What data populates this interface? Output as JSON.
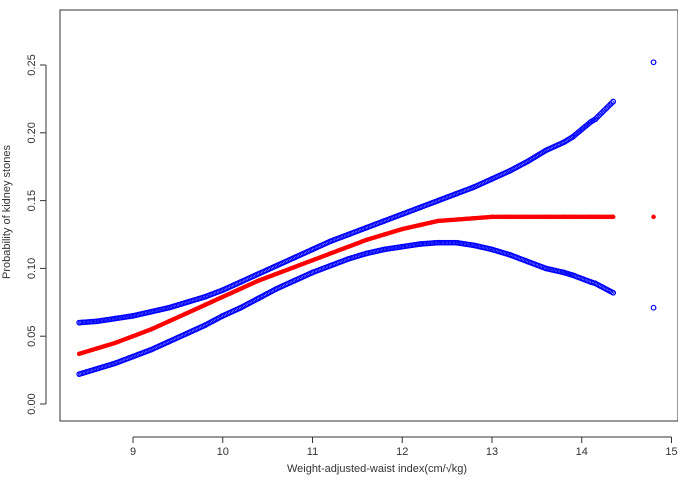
{
  "chart_data": {
    "type": "scatter",
    "title": "",
    "xlabel": "Weight-adjusted-waist index(cm/√kg)",
    "ylabel": "Probability of kidney stones",
    "xlim": [
      8.3,
      15.0
    ],
    "ylim": [
      0.0,
      0.27
    ],
    "xticks": [
      "9",
      "10",
      "11",
      "12",
      "13",
      "14",
      "15"
    ],
    "yticks": [
      "0.00",
      "0.05",
      "0.10",
      "0.15",
      "0.20",
      "0.25"
    ],
    "grid": false,
    "legend": "none",
    "colors": {
      "estimate": "#ff0000",
      "ci": "#0000ff"
    },
    "series": [
      {
        "role": "estimate",
        "marker": "filled-dot",
        "x": [
          8.4,
          8.6,
          8.8,
          9.0,
          9.2,
          9.4,
          9.6,
          9.8,
          10.0,
          10.2,
          10.4,
          10.6,
          10.8,
          11.0,
          11.2,
          11.4,
          11.6,
          11.8,
          12.0,
          12.2,
          12.4,
          12.6,
          12.8,
          13.0,
          13.2,
          13.4,
          13.6,
          13.8,
          13.9,
          14.1,
          14.15,
          14.35,
          14.8
        ],
        "y": [
          0.037,
          0.041,
          0.045,
          0.05,
          0.055,
          0.061,
          0.067,
          0.073,
          0.079,
          0.085,
          0.091,
          0.096,
          0.101,
          0.106,
          0.111,
          0.116,
          0.121,
          0.125,
          0.129,
          0.132,
          0.135,
          0.136,
          0.137,
          0.138,
          0.138,
          0.138,
          0.138,
          0.138,
          0.138,
          0.138,
          0.138,
          0.138,
          0.138
        ]
      },
      {
        "role": "ci-upper",
        "marker": "open-circle",
        "x": [
          8.4,
          8.6,
          8.8,
          9.0,
          9.2,
          9.4,
          9.6,
          9.8,
          10.0,
          10.2,
          10.4,
          10.6,
          10.8,
          11.0,
          11.2,
          11.4,
          11.6,
          11.8,
          12.0,
          12.2,
          12.4,
          12.6,
          12.8,
          13.0,
          13.2,
          13.4,
          13.6,
          13.8,
          13.9,
          14.1,
          14.15,
          14.35,
          14.8
        ],
        "y": [
          0.06,
          0.061,
          0.063,
          0.065,
          0.068,
          0.071,
          0.075,
          0.079,
          0.084,
          0.09,
          0.096,
          0.102,
          0.108,
          0.114,
          0.12,
          0.125,
          0.13,
          0.135,
          0.14,
          0.145,
          0.15,
          0.155,
          0.16,
          0.166,
          0.172,
          0.179,
          0.187,
          0.193,
          0.197,
          0.208,
          0.21,
          0.223,
          0.252
        ]
      },
      {
        "role": "ci-lower",
        "marker": "open-circle",
        "x": [
          8.4,
          8.6,
          8.8,
          9.0,
          9.2,
          9.4,
          9.6,
          9.8,
          10.0,
          10.2,
          10.4,
          10.6,
          10.8,
          11.0,
          11.2,
          11.4,
          11.6,
          11.8,
          12.0,
          12.2,
          12.4,
          12.6,
          12.8,
          13.0,
          13.2,
          13.4,
          13.6,
          13.8,
          13.9,
          14.1,
          14.15,
          14.35,
          14.8
        ],
        "y": [
          0.022,
          0.026,
          0.03,
          0.035,
          0.04,
          0.046,
          0.052,
          0.058,
          0.065,
          0.071,
          0.078,
          0.085,
          0.091,
          0.097,
          0.102,
          0.107,
          0.111,
          0.114,
          0.116,
          0.118,
          0.119,
          0.119,
          0.117,
          0.114,
          0.11,
          0.105,
          0.1,
          0.097,
          0.095,
          0.09,
          0.089,
          0.082,
          0.071
        ]
      }
    ]
  }
}
